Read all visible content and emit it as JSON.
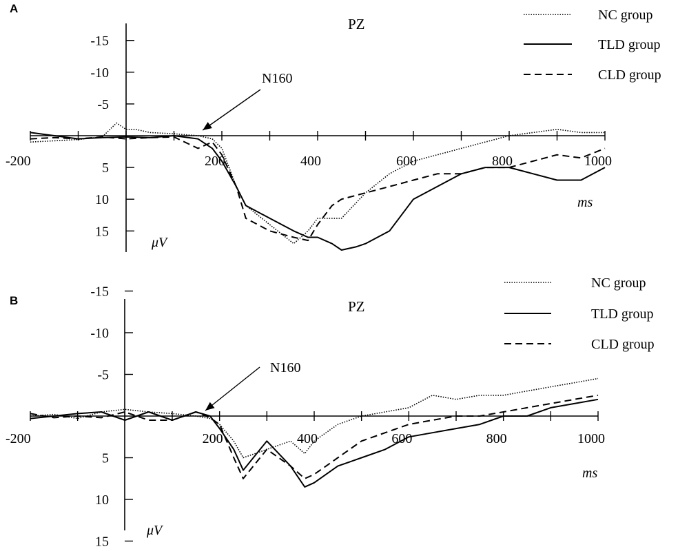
{
  "chart_data": [
    {
      "panel": "A",
      "type": "line",
      "title": "PZ",
      "xlabel": "ms",
      "ylabel": "μV",
      "xlim": [
        -200,
        1000
      ],
      "ylim": [
        -18,
        18
      ],
      "y_inverted": true,
      "xticks": [
        -200,
        200,
        400,
        600,
        800,
        1000
      ],
      "yticks": [
        -15,
        -10,
        -5,
        5,
        10,
        15
      ],
      "annotation": {
        "text": "N160",
        "target": [
          160,
          0
        ]
      },
      "legend_position": "top-right",
      "series": [
        {
          "name": "NC group",
          "style": "dotted",
          "x": [
            -200,
            -150,
            -100,
            -50,
            -20,
            0,
            20,
            50,
            100,
            150,
            180,
            200,
            230,
            250,
            300,
            350,
            380,
            400,
            430,
            450,
            500,
            550,
            600,
            650,
            700,
            750,
            800,
            850,
            900,
            950,
            1000
          ],
          "y": [
            1,
            0.8,
            0.6,
            0.2,
            -2,
            -1,
            -1,
            -0.5,
            -0.3,
            0,
            0.5,
            2,
            8,
            11,
            14,
            17,
            15,
            13,
            13,
            13,
            9,
            6,
            4,
            3,
            2,
            1,
            0,
            -0.5,
            -1,
            -0.5,
            -0.5
          ]
        },
        {
          "name": "TLD group",
          "style": "solid",
          "x": [
            -200,
            -150,
            -100,
            -50,
            0,
            50,
            100,
            150,
            180,
            200,
            230,
            250,
            300,
            350,
            380,
            400,
            430,
            450,
            480,
            500,
            550,
            600,
            650,
            700,
            750,
            800,
            850,
            900,
            950,
            1000
          ],
          "y": [
            -0.5,
            0,
            0.5,
            0.3,
            0.2,
            0.3,
            0,
            0.5,
            2,
            4,
            8,
            11,
            13,
            15,
            16,
            16,
            17,
            18,
            17.5,
            17,
            15,
            10,
            8,
            6,
            5,
            5,
            6,
            7,
            7,
            5
          ]
        },
        {
          "name": "CLD group",
          "style": "dashed",
          "x": [
            -200,
            -150,
            -100,
            -50,
            0,
            50,
            100,
            150,
            180,
            200,
            230,
            250,
            300,
            350,
            380,
            400,
            430,
            450,
            500,
            550,
            600,
            650,
            700,
            750,
            800,
            850,
            900,
            950,
            1000
          ],
          "y": [
            0.5,
            0.3,
            0.5,
            0.2,
            0.5,
            0.3,
            0.2,
            2,
            1,
            3,
            8,
            13,
            15,
            16,
            16.5,
            14,
            11,
            10,
            9,
            8,
            7,
            6,
            6,
            5,
            5,
            4,
            3,
            3.5,
            2
          ]
        }
      ]
    },
    {
      "panel": "B",
      "type": "line",
      "title": "PZ",
      "xlabel": "ms",
      "ylabel": "μV",
      "xlim": [
        -200,
        1000
      ],
      "ylim": [
        -15,
        15
      ],
      "y_inverted": true,
      "xticks": [
        -200,
        200,
        400,
        600,
        800,
        1000
      ],
      "yticks": [
        -15,
        -10,
        -5,
        5,
        10,
        15
      ],
      "annotation": {
        "text": "N160",
        "target": [
          170,
          0
        ]
      },
      "legend_position": "top-right",
      "series": [
        {
          "name": "NC group",
          "style": "dotted",
          "x": [
            -200,
            -150,
            -100,
            -50,
            0,
            50,
            100,
            150,
            180,
            200,
            230,
            250,
            300,
            350,
            380,
            400,
            450,
            500,
            550,
            600,
            650,
            700,
            750,
            800,
            850,
            900,
            950,
            1000
          ],
          "y": [
            0,
            -0.2,
            0.3,
            -0.5,
            -0.8,
            -0.5,
            -0.3,
            0,
            0.3,
            1,
            3,
            5,
            4,
            3,
            4.5,
            3,
            1,
            0,
            -0.5,
            -1,
            -2.5,
            -2,
            -2.5,
            -2.5,
            -3,
            -3.5,
            -4,
            -4.5
          ]
        },
        {
          "name": "TLD group",
          "style": "solid",
          "x": [
            -200,
            -150,
            -100,
            -50,
            0,
            50,
            100,
            150,
            180,
            200,
            230,
            250,
            300,
            350,
            380,
            400,
            450,
            500,
            550,
            600,
            650,
            700,
            750,
            800,
            850,
            900,
            950,
            1000
          ],
          "y": [
            0.3,
            0,
            -0.3,
            -0.5,
            0.5,
            -0.5,
            0.5,
            -0.5,
            0,
            1.5,
            4,
            6.5,
            3,
            6,
            8.5,
            8,
            6,
            5,
            4,
            2.5,
            2,
            1.5,
            1,
            0,
            0,
            -1,
            -1.5,
            -2
          ]
        },
        {
          "name": "CLD group",
          "style": "dashed",
          "x": [
            -200,
            -150,
            -100,
            -50,
            0,
            50,
            100,
            150,
            180,
            200,
            230,
            250,
            300,
            350,
            380,
            400,
            450,
            500,
            550,
            600,
            650,
            700,
            750,
            800,
            850,
            900,
            950,
            1000
          ],
          "y": [
            -0.3,
            0.2,
            0,
            0.2,
            -0.5,
            0.5,
            0.5,
            -0.5,
            0.2,
            1,
            5,
            7.5,
            4,
            6,
            7.5,
            7,
            5,
            3,
            2,
            1,
            0.5,
            0,
            0,
            -0.5,
            -1,
            -1.5,
            -2,
            -2.5
          ]
        }
      ]
    }
  ],
  "panel_labels": [
    "A",
    "B"
  ]
}
